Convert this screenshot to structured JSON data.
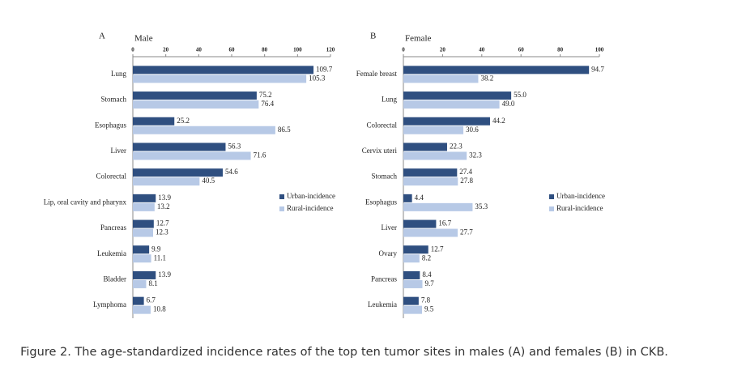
{
  "chart_data": [
    {
      "type": "bar",
      "orientation": "horizontal",
      "panel": "A",
      "title": "Male",
      "categories": [
        "Lung",
        "Stomach",
        "Esophagus",
        "Liver",
        "Colorectal",
        "Lip, oral cavity and pharynx",
        "Pancreas",
        "Leukemia",
        "Bladder",
        "Lymphoma"
      ],
      "series": [
        {
          "name": "Urban-incidence",
          "color": "#2f4f80",
          "values": [
            109.7,
            75.2,
            25.2,
            56.3,
            54.6,
            13.9,
            12.7,
            9.9,
            13.9,
            6.7
          ]
        },
        {
          "name": "Rural-incidence",
          "color": "#b7c9e6",
          "values": [
            105.3,
            76.4,
            86.5,
            71.6,
            40.5,
            13.2,
            12.3,
            11.1,
            8.1,
            10.8
          ]
        }
      ],
      "xlim": [
        0,
        120
      ],
      "xticks": [
        0,
        20,
        40,
        60,
        80,
        100,
        120
      ],
      "legend": "right"
    },
    {
      "type": "bar",
      "orientation": "horizontal",
      "panel": "B",
      "title": "Female",
      "categories": [
        "Female breast",
        "Lung",
        "Colorectal",
        "Cervix uteri",
        "Stomach",
        "Esophagus",
        "Liver",
        "Ovary",
        "Pancreas",
        "Leukemia"
      ],
      "series": [
        {
          "name": "Urban-incidence",
          "color": "#2f4f80",
          "values": [
            94.7,
            55.0,
            44.2,
            22.3,
            27.4,
            4.4,
            16.7,
            12.7,
            8.4,
            7.8
          ],
          "value_labels": [
            "94.7",
            "55.0",
            "44.2",
            "22.3",
            "27.4",
            "4.4",
            "16.7",
            "12.7",
            "8.4",
            "7.8"
          ]
        },
        {
          "name": "Rural-incidence",
          "color": "#b7c9e6",
          "values": [
            38.2,
            49.0,
            30.6,
            32.3,
            27.8,
            35.3,
            27.7,
            8.2,
            9.7,
            9.5
          ],
          "value_labels": [
            "38.2",
            "49.0",
            "30.6",
            "32.3",
            "27.8",
            "35.3",
            "27.7",
            "8.2",
            "9.7",
            "9.5"
          ]
        }
      ],
      "xlim": [
        0,
        100
      ],
      "xticks": [
        0,
        20,
        40,
        60,
        80,
        100
      ],
      "legend": "right"
    }
  ],
  "caption": "Figure 2. The age-standardized incidence rates of the top ten tumor sites in males (A) and females (B) in CKB."
}
